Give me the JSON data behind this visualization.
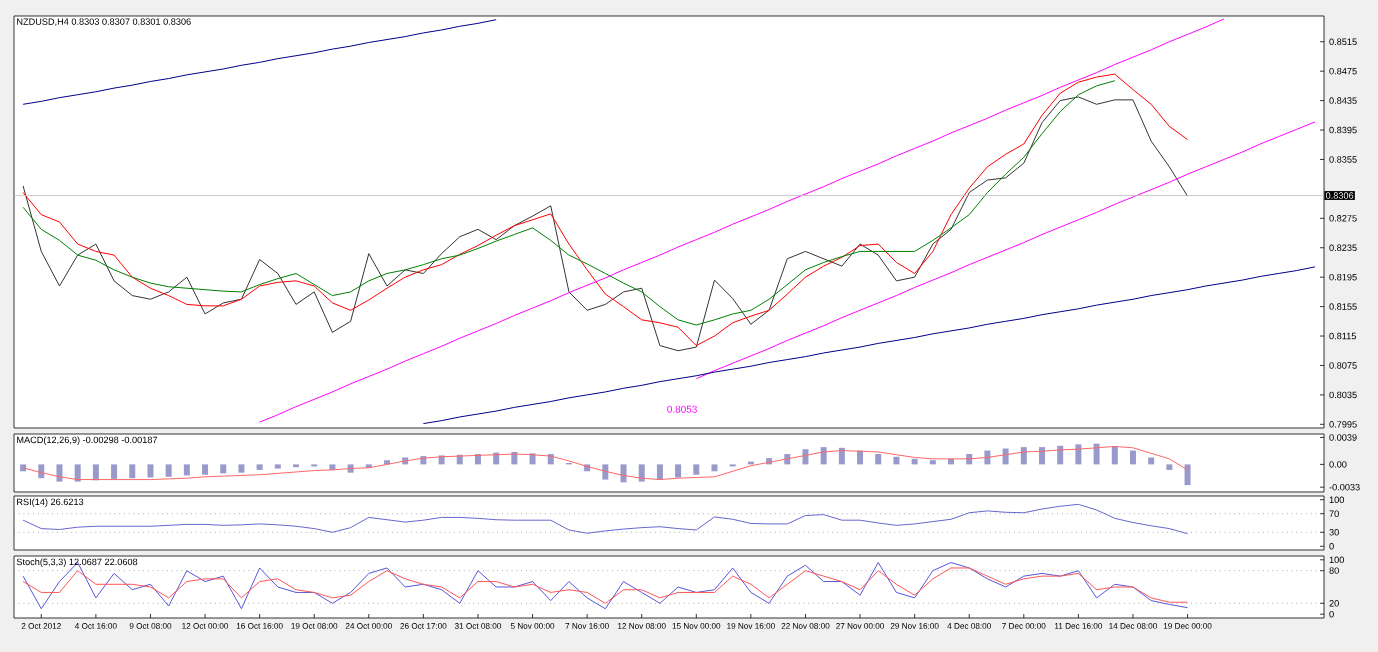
{
  "chart_data": [
    {
      "type": "line",
      "title": "NZDUSD,H4 0.8303 0.8307 0.8301 0.8306",
      "ylim": [
        0.799,
        0.855
      ],
      "yticks": [
        0.7995,
        0.8035,
        0.8075,
        0.8115,
        0.8155,
        0.8195,
        0.8235,
        0.8275,
        0.8355,
        0.8395,
        0.8435,
        0.8475,
        0.8515
      ],
      "categories": [
        null,
        null,
        null,
        null,
        null,
        null,
        null,
        null,
        null,
        null,
        null,
        null,
        null,
        null,
        null,
        null,
        null,
        null,
        null,
        null,
        null,
        null,
        null,
        null,
        null,
        null,
        null,
        null,
        null,
        null,
        null,
        null,
        null,
        null,
        null,
        null,
        null,
        null,
        null,
        null,
        null,
        null,
        null,
        null,
        null,
        null,
        null,
        null,
        null,
        null,
        null,
        null,
        null,
        null,
        null,
        null,
        null,
        null,
        null,
        null,
        null,
        null,
        null,
        null,
        null,
        null,
        null,
        null,
        null,
        null,
        null,
        null
      ],
      "ref_lines": [
        {
          "axis": "y",
          "value": 0.8306,
          "label": "0.8306",
          "color": "#c0c0c0"
        }
      ],
      "annotations": [
        "0.8053"
      ],
      "series": [
        {
          "color": "#333333",
          "values": [
            0.8319,
            0.823,
            0.8183,
            0.8225,
            0.824,
            0.819,
            0.817,
            0.8165,
            0.8175,
            0.8195,
            0.8145,
            0.816,
            0.8165,
            0.8219,
            0.82,
            0.8158,
            0.8175,
            0.812,
            0.8135,
            0.8227,
            0.8183,
            0.8205,
            0.82,
            0.8227,
            0.825,
            0.826,
            0.8246,
            0.8265,
            0.8278,
            0.8292,
            0.8175,
            0.815,
            0.8158,
            0.8175,
            0.818,
            0.8102,
            0.8095,
            0.81,
            0.8191,
            0.8166,
            0.8131,
            0.815,
            0.822,
            0.823,
            0.822,
            0.821,
            0.824,
            0.8225,
            0.819,
            0.8195,
            0.824,
            0.826,
            0.831,
            0.8327,
            0.833,
            0.835,
            0.8405,
            0.8435,
            0.844,
            0.843,
            0.8436,
            0.8436,
            0.838,
            0.8345,
            0.8305,
            null,
            null,
            null,
            null,
            null,
            null,
            null
          ]
        },
        {
          "color": "#ff0000",
          "values": [
            0.831,
            0.828,
            0.827,
            0.824,
            0.823,
            0.8225,
            0.8195,
            0.818,
            0.817,
            0.8158,
            0.8156,
            0.8156,
            0.8165,
            0.8183,
            0.8188,
            0.819,
            0.8183,
            0.816,
            0.815,
            0.8164,
            0.818,
            0.8195,
            0.8205,
            0.8212,
            0.8226,
            0.8238,
            0.8252,
            0.8265,
            0.8273,
            0.8281,
            0.824,
            0.8205,
            0.8172,
            0.8155,
            0.8137,
            0.8133,
            0.8127,
            0.8102,
            0.8115,
            0.8133,
            0.8142,
            0.815,
            0.8172,
            0.8195,
            0.821,
            0.8222,
            0.8238,
            0.824,
            0.8215,
            0.82,
            0.823,
            0.828,
            0.8316,
            0.8345,
            0.8362,
            0.8376,
            0.8415,
            0.8445,
            0.846,
            0.8467,
            0.8471,
            0.845,
            0.843,
            0.84,
            0.8382,
            null,
            null,
            null,
            null,
            null,
            null,
            null
          ]
        },
        {
          "color": "#008000",
          "values": [
            0.829,
            0.826,
            0.8245,
            0.8225,
            0.8218,
            0.8205,
            0.8195,
            0.8187,
            0.8182,
            0.818,
            0.8178,
            0.8176,
            0.8175,
            0.8185,
            0.8193,
            0.82,
            0.8185,
            0.817,
            0.8175,
            0.819,
            0.82,
            0.8205,
            0.8212,
            0.822,
            0.8225,
            0.8234,
            0.8244,
            0.8253,
            0.8262,
            0.8245,
            0.8225,
            0.8213,
            0.82,
            0.8187,
            0.8175,
            0.8155,
            0.8137,
            0.813,
            0.8137,
            0.8145,
            0.815,
            0.8165,
            0.8185,
            0.8205,
            0.8215,
            0.8223,
            0.823,
            0.823,
            0.823,
            0.823,
            0.8245,
            0.8262,
            0.828,
            0.831,
            0.8335,
            0.8358,
            0.839,
            0.842,
            0.8443,
            0.8455,
            0.8462,
            null,
            null,
            null,
            null,
            null,
            null,
            null,
            null,
            null,
            null,
            null
          ]
        },
        {
          "color": "#ff00ff",
          "values": [
            null,
            null,
            null,
            null,
            null,
            null,
            null,
            null,
            null,
            null,
            null,
            null,
            null,
            0.7998,
            0.8008,
            0.8019,
            0.8029,
            0.8039,
            0.805,
            0.806,
            0.807,
            0.8081,
            0.8091,
            0.8101,
            0.8112,
            0.8122,
            0.8132,
            0.8143,
            0.8153,
            0.8163,
            0.8174,
            0.8184,
            0.8194,
            0.8205,
            0.8215,
            0.8225,
            0.8236,
            0.8246,
            0.8256,
            0.8267,
            0.8277,
            0.8287,
            0.8298,
            0.8308,
            0.8318,
            0.8329,
            0.8339,
            0.8349,
            0.836,
            0.837,
            0.838,
            0.8391,
            0.8401,
            0.8411,
            0.8422,
            0.8432,
            0.8442,
            0.8453,
            0.8463,
            0.8473,
            0.8484,
            0.8494,
            0.8504,
            0.8515,
            0.8525,
            0.8535,
            0.8546,
            null,
            null,
            null,
            null,
            null
          ]
        },
        {
          "color": "#ff00ff",
          "values": [
            null,
            null,
            null,
            null,
            null,
            null,
            null,
            null,
            null,
            null,
            null,
            null,
            null,
            null,
            null,
            null,
            null,
            null,
            null,
            null,
            null,
            null,
            null,
            null,
            null,
            null,
            null,
            null,
            null,
            null,
            null,
            null,
            null,
            null,
            null,
            null,
            null,
            0.8057,
            0.8068,
            0.8078,
            0.8088,
            0.8098,
            0.8109,
            0.8119,
            0.8129,
            0.814,
            0.815,
            0.816,
            0.817,
            0.8181,
            0.8191,
            0.8201,
            0.8212,
            0.8222,
            0.8232,
            0.8242,
            0.8253,
            0.8263,
            0.8273,
            0.8283,
            0.8294,
            0.8304,
            0.8314,
            0.8324,
            0.8335,
            0.8345,
            0.8355,
            0.8365,
            0.8376,
            0.8386,
            0.8396,
            0.8406
          ]
        },
        {
          "color": "#00008b",
          "values": [
            0.843,
            0.8434,
            0.8439,
            0.8443,
            0.8447,
            0.8452,
            0.8456,
            0.8461,
            0.8465,
            0.847,
            0.8474,
            0.8478,
            0.8483,
            0.8487,
            0.8492,
            0.8496,
            0.85,
            0.8505,
            0.8509,
            0.8514,
            0.8518,
            0.8522,
            0.8527,
            0.8531,
            0.8536,
            0.854,
            0.8545,
            null,
            null,
            null,
            null,
            null,
            null,
            null,
            null,
            null,
            null,
            null,
            null,
            null,
            null,
            null,
            null,
            null,
            null,
            null,
            null,
            null,
            null,
            null,
            null,
            null,
            null,
            null,
            null,
            null,
            null,
            null,
            null,
            null,
            null,
            null,
            null,
            null,
            null,
            null,
            null,
            null,
            null,
            null,
            null,
            null
          ]
        },
        {
          "color": "#00008b",
          "values": [
            null,
            null,
            null,
            null,
            null,
            null,
            null,
            null,
            null,
            null,
            null,
            null,
            null,
            null,
            null,
            null,
            null,
            null,
            null,
            null,
            null,
            null,
            0.7996,
            0.8,
            0.8005,
            0.8009,
            0.8013,
            0.8018,
            0.8022,
            0.8026,
            0.8031,
            0.8035,
            0.8039,
            0.8044,
            0.8048,
            0.8053,
            0.8057,
            0.8061,
            0.8066,
            0.807,
            0.8074,
            0.8079,
            0.8083,
            0.8087,
            0.8092,
            0.8096,
            0.81,
            0.8105,
            0.8109,
            0.8113,
            0.8118,
            0.8122,
            0.8126,
            0.8131,
            0.8135,
            0.8139,
            0.8144,
            0.8148,
            0.8152,
            0.8157,
            0.8161,
            0.8165,
            0.817,
            0.8174,
            0.8178,
            0.8183,
            0.8187,
            0.8191,
            0.8196,
            0.82,
            0.8204,
            0.8209
          ]
        }
      ]
    },
    {
      "type": "bar",
      "title": "MACD(12,26,9) -0.00298 -0.00187",
      "ylim": [
        -0.004,
        0.0044
      ],
      "yticks": [
        -0.0033,
        {
          "value": 0,
          "label": "0.00"
        },
        0.0039
      ],
      "categories": [
        null,
        null,
        null,
        null,
        null,
        null,
        null,
        null,
        null,
        null,
        null,
        null,
        null,
        null,
        null,
        null,
        null,
        null,
        null,
        null,
        null,
        null,
        null,
        null,
        null,
        null,
        null,
        null,
        null,
        null,
        null,
        null,
        null,
        null,
        null,
        null,
        null,
        null,
        null,
        null,
        null,
        null,
        null,
        null,
        null,
        null,
        null,
        null,
        null,
        null,
        null,
        null,
        null,
        null,
        null,
        null,
        null,
        null,
        null,
        null,
        null,
        null,
        null,
        null,
        null,
        null,
        null,
        null,
        null,
        null,
        null,
        null
      ],
      "series": [
        {
          "color": "#9999cc",
          "values": [
            -0.001,
            -0.002,
            -0.0025,
            -0.0025,
            -0.0023,
            -0.0021,
            -0.002,
            -0.0019,
            -0.0018,
            -0.0016,
            -0.0015,
            -0.0013,
            -0.0012,
            -0.0008,
            -0.0006,
            -0.0004,
            -0.0003,
            -0.0008,
            -0.0012,
            -0.0005,
            0.0006,
            0.001,
            0.0012,
            0.0013,
            0.0014,
            0.0015,
            0.0017,
            0.0018,
            0.0016,
            0.0015,
            0.0002,
            -0.001,
            -0.0022,
            -0.0026,
            -0.0025,
            -0.0022,
            -0.0019,
            -0.0015,
            -0.001,
            -0.0003,
            0.0004,
            0.0009,
            0.0015,
            0.0022,
            0.0025,
            0.0024,
            0.002,
            0.0015,
            0.0011,
            0.0008,
            0.0006,
            0.0008,
            0.0015,
            0.002,
            0.0023,
            0.0025,
            0.0025,
            0.0027,
            0.0029,
            0.003,
            0.0026,
            0.002,
            0.001,
            -0.0008,
            -0.003,
            null,
            null,
            null,
            null,
            null,
            null,
            null
          ]
        },
        {
          "type": "line",
          "color": "#ff6666",
          "values": [
            -0.0005,
            -0.0012,
            -0.0018,
            -0.0022,
            -0.0022,
            -0.0022,
            -0.0022,
            -0.0022,
            -0.0021,
            -0.002,
            -0.0018,
            -0.0017,
            -0.0016,
            -0.0015,
            -0.0013,
            -0.0011,
            -0.0009,
            -0.0008,
            -0.0006,
            -0.0005,
            0,
            0.0005,
            0.0009,
            0.0011,
            0.0012,
            0.0013,
            0.0014,
            0.0015,
            0.0014,
            0.0012,
            0.0005,
            -0.0003,
            -0.001,
            -0.0016,
            -0.002,
            -0.0022,
            -0.002,
            -0.0019,
            -0.0018,
            -0.001,
            -0.0002,
            0.0003,
            0.0008,
            0.0013,
            0.0018,
            0.002,
            0.0019,
            0.0018,
            0.0014,
            0.001,
            0.0008,
            0.0008,
            0.0008,
            0.001,
            0.0014,
            0.0018,
            0.0019,
            0.0021,
            0.0022,
            0.0024,
            0.0026,
            0.0024,
            0.0016,
            0.0008,
            -0.0008,
            null,
            null,
            null,
            null,
            null,
            null,
            null
          ]
        }
      ]
    },
    {
      "type": "line",
      "title": "RSI(14) 26.6213",
      "ylim": [
        -8,
        108
      ],
      "yticks": [
        0,
        30,
        70,
        100
      ],
      "categories": [
        null,
        null,
        null,
        null,
        null,
        null,
        null,
        null,
        null,
        null,
        null,
        null,
        null,
        null,
        null,
        null,
        null,
        null,
        null,
        null,
        null,
        null,
        null,
        null,
        null,
        null,
        null,
        null,
        null,
        null,
        null,
        null,
        null,
        null,
        null,
        null,
        null,
        null,
        null,
        null,
        null,
        null,
        null,
        null,
        null,
        null,
        null,
        null,
        null,
        null,
        null,
        null,
        null,
        null,
        null,
        null,
        null,
        null,
        null,
        null,
        null,
        null,
        null,
        null,
        null,
        null,
        null,
        null,
        null,
        null,
        null,
        null
      ],
      "ref_lines": [
        {
          "axis": "y",
          "value": 30,
          "color": "#808080",
          "line_style": "dotted"
        },
        {
          "axis": "y",
          "value": 70,
          "color": "#808080",
          "line_style": "dotted"
        }
      ],
      "series": [
        {
          "color": "#6666cc",
          "values": [
            56,
            38,
            36,
            41,
            43,
            43,
            43,
            43,
            45,
            47,
            47,
            45,
            46,
            48,
            46,
            43,
            38,
            30,
            40,
            62,
            57,
            52,
            56,
            62,
            62,
            60,
            57,
            56,
            56,
            56,
            35,
            28,
            33,
            37,
            40,
            42,
            38,
            35,
            63,
            58,
            49,
            48,
            48,
            66,
            68,
            56,
            56,
            50,
            45,
            48,
            53,
            58,
            72,
            76,
            73,
            72,
            80,
            86,
            90,
            78,
            60,
            51,
            44,
            38,
            27,
            null,
            null,
            null,
            null,
            null,
            null,
            null
          ]
        }
      ]
    },
    {
      "type": "line",
      "title": "Stoch(5,3,3) 12.0687 22.0608",
      "ylim": [
        -7,
        107
      ],
      "yticks": [
        0,
        20,
        80,
        100
      ],
      "categories": [
        null,
        "2 Oct 2012",
        null,
        null,
        "4 Oct 16:00",
        null,
        null,
        "9 Oct 08:00",
        null,
        null,
        "12 Oct 00:00",
        null,
        null,
        "16 Oct 16:00",
        null,
        null,
        "19 Oct 08:00",
        null,
        null,
        "24 Oct 00:00",
        null,
        null,
        "26 Oct 17:00",
        null,
        null,
        "31 Oct 08:00",
        null,
        null,
        "5 Nov 00:00",
        null,
        null,
        "7 Nov 16:00",
        null,
        null,
        "12 Nov 08:00",
        null,
        null,
        "15 Nov 00:00",
        null,
        null,
        "19 Nov 16:00",
        null,
        null,
        "22 Nov 08:00",
        null,
        null,
        "27 Nov 00:00",
        null,
        null,
        "29 Nov 16:00",
        null,
        null,
        "4 Dec 08:00",
        null,
        null,
        "7 Dec 00:00",
        null,
        null,
        "11 Dec 16:00",
        null,
        null,
        "14 Dec 08:00",
        null,
        null,
        "19 Dec 00:00",
        null,
        null,
        null,
        null,
        null,
        null,
        null
      ],
      "ref_lines": [
        {
          "axis": "y",
          "value": 20,
          "color": "#808080",
          "line_style": "dotted"
        },
        {
          "axis": "y",
          "value": 80,
          "color": "#808080",
          "line_style": "dotted"
        }
      ],
      "series": [
        {
          "color": "#5555dd",
          "values": [
            70,
            10,
            60,
            95,
            30,
            75,
            45,
            55,
            15,
            80,
            60,
            70,
            10,
            85,
            50,
            40,
            40,
            20,
            40,
            75,
            85,
            50,
            55,
            45,
            20,
            80,
            50,
            50,
            60,
            25,
            60,
            30,
            10,
            60,
            40,
            20,
            50,
            40,
            45,
            85,
            40,
            20,
            70,
            90,
            60,
            60,
            35,
            95,
            40,
            30,
            80,
            95,
            85,
            65,
            50,
            70,
            75,
            70,
            80,
            30,
            55,
            50,
            25,
            18,
            12,
            null,
            null,
            null,
            null,
            null,
            null,
            null
          ]
        },
        {
          "color": "#ff5555",
          "values": [
            60,
            40,
            40,
            80,
            55,
            55,
            55,
            50,
            30,
            60,
            65,
            65,
            30,
            60,
            65,
            45,
            40,
            30,
            35,
            60,
            80,
            65,
            55,
            50,
            30,
            60,
            60,
            50,
            55,
            40,
            45,
            40,
            20,
            45,
            45,
            30,
            40,
            40,
            40,
            70,
            55,
            30,
            55,
            80,
            70,
            60,
            45,
            80,
            55,
            35,
            65,
            85,
            85,
            70,
            55,
            65,
            70,
            70,
            75,
            45,
            50,
            50,
            30,
            22,
            22,
            null,
            null,
            null,
            null,
            null,
            null,
            null
          ]
        }
      ]
    }
  ]
}
